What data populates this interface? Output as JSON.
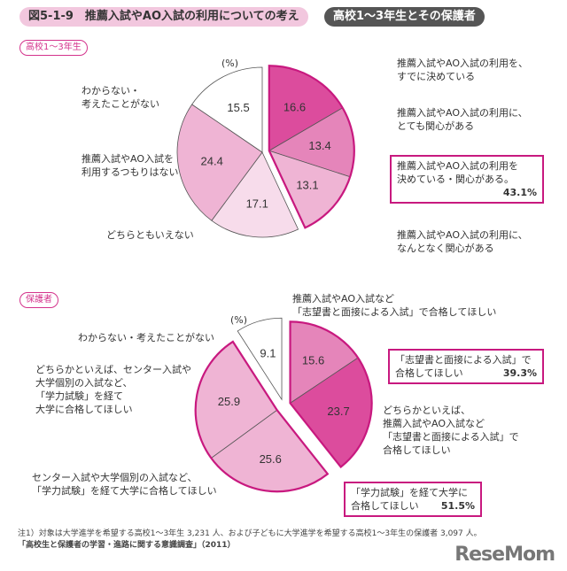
{
  "header": {
    "title": "図5-1-9　推薦入試やAO入試の利用についての考え",
    "subtitle": "高校1～3年生とその保護者"
  },
  "colors": {
    "dark": "#dc4c9d",
    "mid": "#e585ba",
    "light": "#efb4d4",
    "pale": "#f7dceb",
    "white": "#ffffff",
    "outline": "#c8197f"
  },
  "chart_data": [
    {
      "type": "pie",
      "title": "高校1～3年生",
      "unit": "(%)",
      "slices": [
        {
          "label": "推薦入試やAO入試の利用を、すでに決めている",
          "value": 16.6,
          "color": "dark",
          "group": 1
        },
        {
          "label": "推薦入試やAO入試の利用に、とても関心がある",
          "value": 13.4,
          "color": "mid",
          "group": 1
        },
        {
          "label": "推薦入試やAO入試の利用に、なんとなく関心がある",
          "value": 13.1,
          "color": "light",
          "group": 1
        },
        {
          "label": "どちらともいえない",
          "value": 17.1,
          "color": "pale",
          "group": 0
        },
        {
          "label": "推薦入試やAO入試を利用するつもりはない",
          "value": 24.4,
          "color": "light",
          "group": 0
        },
        {
          "label": "わからない・考えたことがない",
          "value": 15.5,
          "color": "white",
          "group": 0
        }
      ],
      "highlight": {
        "label": "推薦入試やAO入試の利用を決めている・関心がある",
        "value": "43.1%"
      }
    },
    {
      "type": "pie",
      "title": "保護者",
      "unit": "(%)",
      "slices": [
        {
          "label": "推薦入試やAO入試など「志望書と面接による入試」で合格してほしい",
          "value": 15.6,
          "color": "mid",
          "group": 1
        },
        {
          "label": "どちらかといえば、推薦入試やAO入試など「志望書と面接による入試」で合格してほしい",
          "value": 23.7,
          "color": "dark",
          "group": 1
        },
        {
          "label": "センター入試や大学個別の入試など、「学力試験」を経て大学に合格してほしい",
          "value": 25.6,
          "color": "light",
          "group": 2
        },
        {
          "label": "どちらかといえば、センター入試や大学個別の入試など、「学力試験」を経て大学に合格してほしい",
          "value": 25.9,
          "color": "light",
          "group": 2
        },
        {
          "label": "わからない・考えたことがない",
          "value": 9.1,
          "color": "white",
          "group": 3
        }
      ],
      "highlights": [
        {
          "label": "「志望書と面接による入試」で合格してほしい",
          "value": "39.3%"
        },
        {
          "label": "「学力試験」を経て大学に合格してほしい",
          "value": "51.5%"
        }
      ]
    }
  ],
  "labels": {
    "c1": {
      "a1": "推薦入試やAO入試の利用を、",
      "a2": "すでに決めている",
      "b1": "推薦入試やAO入試の利用に、",
      "b2": "とても関心がある",
      "c1": "推薦入試やAO入試の利用に、",
      "c2": "なんとなく関心がある",
      "d": "どちらともいえない",
      "e1": "推薦入試やAO入試を",
      "e2": "利用するつもりはない",
      "f1": "わからない・",
      "f2": "考えたことがない",
      "h1": "推薦入試やAO入試の利用を",
      "h2": "決めている・関心がある。"
    },
    "c2": {
      "a1": "推薦入試やAO入試など",
      "a2": "「志望書と面接による入試」で合格してほしい",
      "b1": "どちらかといえば、",
      "b2": "推薦入試やAO入試など",
      "b3": "「志望書と面接による入試」で",
      "b4": "合格してほしい",
      "c1": "センター入試や大学個別の入試など、",
      "c2": "「学力試験」を経て大学に合格してほしい",
      "d1": "どちらかといえば、センター入試や",
      "d2": "大学個別の入試など、",
      "d3": "「学力試験」を経て",
      "d4": "大学に合格してほしい",
      "e": "わからない・考えたことがない",
      "h1a": "「志望書と面接による入試」で",
      "h1b": "合格してほしい",
      "h2a": "「学力試験」を経て大学に",
      "h2b": "合格してほしい"
    }
  },
  "footer": {
    "note": "注1）対象は大学進学を希望する高校1～3年生 3,231 人、および子どもに大学進学を希望する高校1～3年生の保護者 3,097 人。",
    "source": "「高校生と保護者の学習・進路に関する意識調査」（2011）",
    "logo": "ReseMom"
  }
}
